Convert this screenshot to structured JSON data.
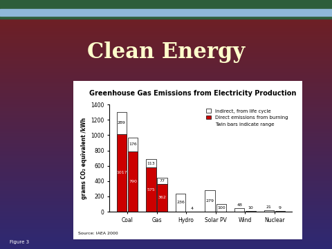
{
  "header": {
    "title": "Clean Energy",
    "footer": "Figure 3"
  },
  "chart_data": {
    "type": "bar",
    "stacked": true,
    "data_labels": true,
    "title": "Greenhouse Gas Emissions from Electricity Production",
    "y_label": "grams CO₂ equivalent /kWh",
    "source": "Source: IAEA 2000",
    "categories": [
      "Coal",
      "Gas",
      "Hydro",
      "Solar PV",
      "Wind",
      "Nuclear"
    ],
    "series": [
      {
        "name": "Direct emissions from burning",
        "color": "#cc0000",
        "values": [
          [
            1017,
            790
          ],
          [
            575,
            362
          ],
          [
            null,
            null
          ],
          [
            null,
            null
          ],
          [
            null,
            null
          ],
          [
            null,
            null
          ]
        ]
      },
      {
        "name": "Indirect, from life cycle",
        "color": "#ffffff",
        "values": [
          [
            289,
            176
          ],
          [
            113,
            77
          ],
          [
            236,
            4
          ],
          [
            279,
            100
          ],
          [
            48,
            10
          ],
          [
            21,
            9
          ]
        ]
      }
    ],
    "legend": "upper right",
    "legend_note": "Twin bars indicate range",
    "ylim": [
      0,
      1400
    ],
    "yticks": [
      0,
      200,
      400,
      600,
      800,
      1000,
      1200,
      1400
    ]
  }
}
